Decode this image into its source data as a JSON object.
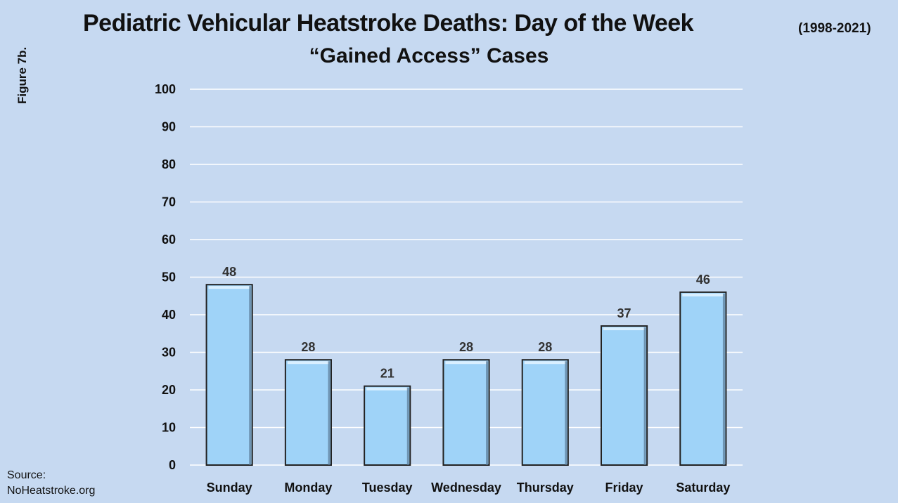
{
  "chart_data": {
    "type": "bar",
    "title": "Pediatric Vehicular Heatstroke Deaths: Day of the Week",
    "title_note": "(1998-2021)",
    "subtitle": "“Gained Access” Cases",
    "figure_label": "Figure 7b.",
    "source": [
      "Source:",
      "NoHeatstroke.org"
    ],
    "categories": [
      "Sunday",
      "Monday",
      "Tuesday",
      "Wednesday",
      "Thursday",
      "Friday",
      "Saturday"
    ],
    "values": [
      48,
      28,
      21,
      28,
      28,
      37,
      46
    ],
    "ylim": [
      0,
      100
    ],
    "yticks": [
      0,
      10,
      20,
      30,
      40,
      50,
      60,
      70,
      80,
      90,
      100
    ],
    "grid": true,
    "legend": "none",
    "colors": {
      "background": "#c6d9f1",
      "bar_fill": "#9fd3f8",
      "bar_highlight": "#d9efff",
      "bar_stroke": "#222222",
      "gridline": "#ffffff"
    }
  }
}
